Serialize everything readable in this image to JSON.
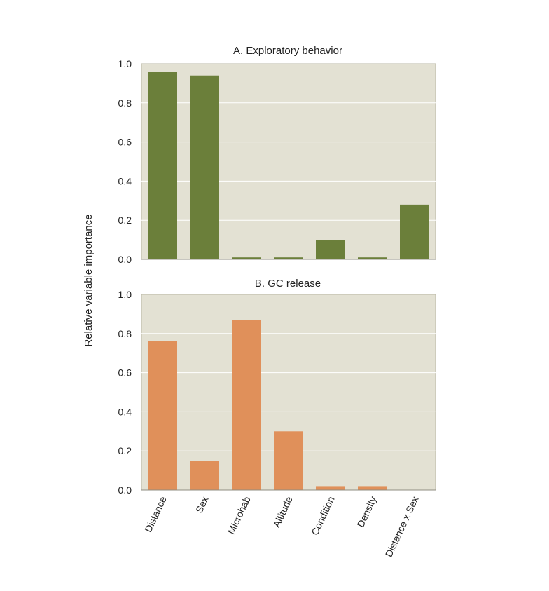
{
  "shared_ylabel": "Relative variable importance",
  "chart_data": [
    {
      "type": "bar",
      "title": "A. Exploratory behavior",
      "categories": [
        "Distance",
        "Sex",
        "Microhab",
        "Altitude",
        "Condition",
        "Density",
        "Distance x Sex"
      ],
      "values": [
        0.96,
        0.94,
        0.01,
        0.01,
        0.1,
        0.01,
        0.28
      ],
      "ylim": [
        0,
        1.0
      ],
      "yticks": [
        "0.0",
        "0.2",
        "0.4",
        "0.6",
        "0.8",
        "1.0"
      ],
      "grid": true,
      "color": "#6b7f3a",
      "background": "#e3e1d3"
    },
    {
      "type": "bar",
      "title": "B. GC release",
      "categories": [
        "Distance",
        "Sex",
        "Microhab",
        "Altitude",
        "Condition",
        "Density",
        "Distance x Sex"
      ],
      "values": [
        0.76,
        0.15,
        0.87,
        0.3,
        0.02,
        0.02,
        0.0
      ],
      "ylim": [
        0,
        1.0
      ],
      "yticks": [
        "0.0",
        "0.2",
        "0.4",
        "0.6",
        "0.8",
        "1.0"
      ],
      "grid": true,
      "color": "#e0905a",
      "background": "#e3e1d3"
    }
  ]
}
